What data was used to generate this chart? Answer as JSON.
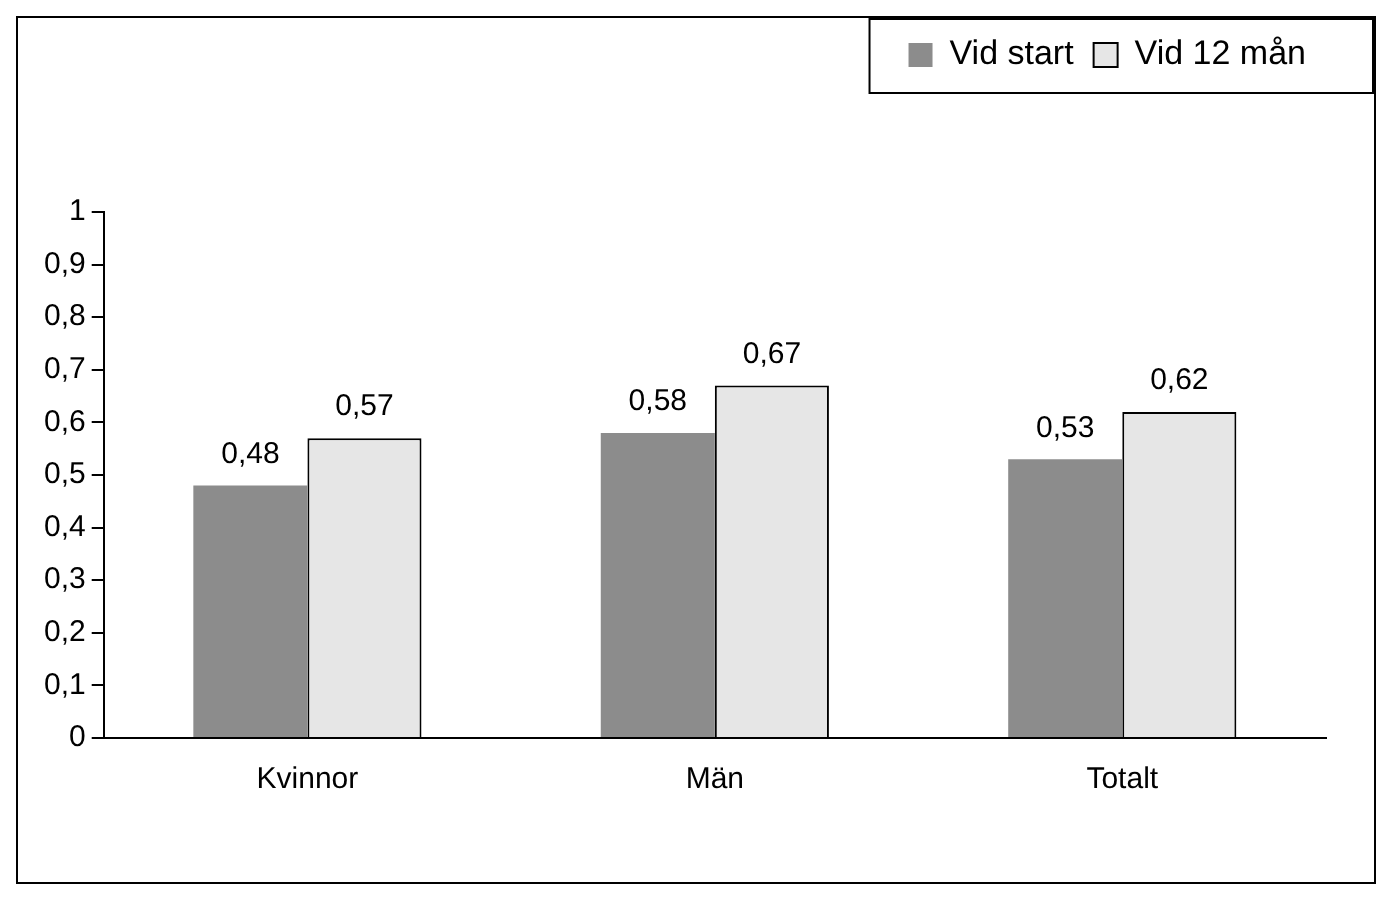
{
  "chart_data": {
    "type": "bar",
    "categories": [
      "Kvinnor",
      "Män",
      "Totalt"
    ],
    "series": [
      {
        "name": "Vid start",
        "color": "#8c8c8c",
        "values": [
          0.48,
          0.58,
          0.53
        ],
        "value_labels": [
          "0,48",
          "0,58",
          "0,53"
        ]
      },
      {
        "name": "Vid 12 mån",
        "color": "#e6e6e6",
        "values": [
          0.57,
          0.67,
          0.62
        ],
        "value_labels": [
          "0,57",
          "0,67",
          "0,62"
        ]
      }
    ],
    "ylim": [
      0,
      1
    ],
    "yticks": [
      0,
      {
        "value": 0.1,
        "label": "0,1"
      },
      {
        "value": 0.2,
        "label": "0,2"
      },
      {
        "value": 0.3,
        "label": "0,3"
      },
      {
        "value": 0.4,
        "label": "0,4"
      },
      {
        "value": 0.5,
        "label": "0,5"
      },
      {
        "value": 0.6,
        "label": "0,6"
      },
      {
        "value": 0.7,
        "label": "0,7"
      },
      {
        "value": 0.8,
        "label": "0,8"
      },
      {
        "value": 0.9,
        "label": "0,9"
      },
      1
    ],
    "grid": false,
    "legend": "top right"
  }
}
